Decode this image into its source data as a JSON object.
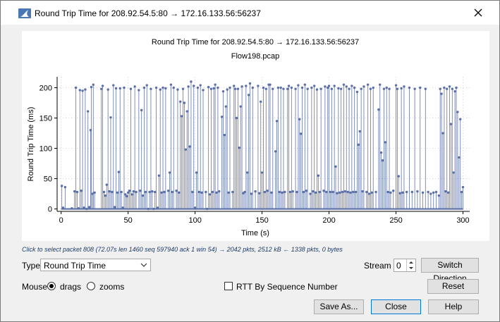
{
  "window": {
    "title": "Round Trip Time for 208.92.54.5:80 → 172.16.133.56:56237"
  },
  "chart_data": {
    "type": "scatter",
    "title": "Round Trip Time for 208.92.54.5:80 → 172.16.133.56:56237",
    "subtitle": "Flow198.pcap",
    "xlabel": "Time (s)",
    "ylabel": "Round Trip Time (ms)",
    "xlim": [
      -3,
      305
    ],
    "ylim": [
      -4,
      218
    ],
    "xticks": [
      0,
      50,
      100,
      150,
      200,
      250,
      300
    ],
    "yticks": [
      0,
      50,
      100,
      150,
      200
    ],
    "grid": true,
    "series_color": "#5b6fa8",
    "series": [
      {
        "name": "RTT",
        "points": [
          [
            0.5,
            38
          ],
          [
            1.5,
            2
          ],
          [
            3,
            36
          ],
          [
            8,
            1
          ],
          [
            10,
            29
          ],
          [
            11,
            200
          ],
          [
            12,
            28
          ],
          [
            13,
            1
          ],
          [
            14,
            196
          ],
          [
            15,
            30
          ],
          [
            16,
            195
          ],
          [
            17,
            2
          ],
          [
            18,
            197
          ],
          [
            19,
            0
          ],
          [
            20,
            161
          ],
          [
            21,
            3
          ],
          [
            22,
            130
          ],
          [
            22.5,
            201
          ],
          [
            23.5,
            25
          ],
          [
            24,
            205
          ],
          [
            25,
            27
          ],
          [
            30,
            198
          ],
          [
            31,
            203
          ],
          [
            32,
            28
          ],
          [
            33,
            22
          ],
          [
            34,
            40
          ],
          [
            35,
            197
          ],
          [
            36,
            29
          ],
          [
            37,
            151
          ],
          [
            38,
            28
          ],
          [
            39,
            204
          ],
          [
            40,
            3
          ],
          [
            41,
            199
          ],
          [
            42,
            27
          ],
          [
            43,
            61
          ],
          [
            44,
            199
          ],
          [
            45,
            28
          ],
          [
            46,
            2
          ],
          [
            47,
            200
          ],
          [
            48,
            24
          ],
          [
            49,
            21
          ],
          [
            50,
            27
          ],
          [
            51,
            30
          ],
          [
            52,
            198
          ],
          [
            53,
            24
          ],
          [
            54,
            29
          ],
          [
            55,
            202
          ],
          [
            56,
            28
          ],
          [
            58,
            196
          ],
          [
            59,
            30
          ],
          [
            60,
            163
          ],
          [
            61,
            22
          ],
          [
            62,
            200
          ],
          [
            63,
            28
          ],
          [
            64,
            204
          ],
          [
            65,
            0
          ],
          [
            66,
            28
          ],
          [
            67,
            198
          ],
          [
            68,
            29
          ],
          [
            69,
            0
          ],
          [
            70,
            28
          ],
          [
            71,
            200
          ],
          [
            72,
            2
          ],
          [
            73,
            55
          ],
          [
            74,
            197
          ],
          [
            75,
            27
          ],
          [
            76,
            200
          ],
          [
            77,
            28
          ],
          [
            78,
            199
          ],
          [
            80,
            30
          ],
          [
            81,
            60
          ],
          [
            82,
            205
          ],
          [
            83,
            28
          ],
          [
            84,
            200
          ],
          [
            86,
            30
          ],
          [
            87,
            197
          ],
          [
            88,
            27
          ],
          [
            89,
            177
          ],
          [
            90,
            153
          ],
          [
            91,
            198
          ],
          [
            92,
            175
          ],
          [
            93,
            98
          ],
          [
            94,
            161
          ],
          [
            95,
            202
          ],
          [
            96,
            103
          ],
          [
            97,
            210
          ],
          [
            98,
            28
          ],
          [
            99,
            203
          ],
          [
            100,
            2
          ],
          [
            101,
            60
          ],
          [
            102,
            200
          ],
          [
            103,
            28
          ],
          [
            104,
            204
          ],
          [
            105,
            27
          ],
          [
            106,
            196
          ],
          [
            108,
            28
          ],
          [
            109,
            0
          ],
          [
            110,
            201
          ],
          [
            111,
            24
          ],
          [
            112,
            198
          ],
          [
            113,
            28
          ],
          [
            114,
            199
          ],
          [
            115,
            205
          ],
          [
            116,
            27
          ],
          [
            117,
            200
          ],
          [
            118,
            29
          ],
          [
            120,
            152
          ],
          [
            121,
            194
          ],
          [
            122,
            122
          ],
          [
            123,
            169
          ],
          [
            124,
            197
          ],
          [
            125,
            27
          ],
          [
            126,
            200
          ],
          [
            128,
            28
          ],
          [
            129,
            203
          ],
          [
            130,
            198
          ],
          [
            131,
            150
          ],
          [
            132,
            198
          ],
          [
            133,
            101
          ],
          [
            134,
            169
          ],
          [
            135,
            202
          ],
          [
            136,
            26
          ],
          [
            137,
            28
          ],
          [
            138,
            203
          ],
          [
            139,
            60
          ],
          [
            140,
            188
          ],
          [
            141,
            207
          ],
          [
            142,
            25
          ],
          [
            143,
            200
          ],
          [
            145,
            29
          ],
          [
            147,
            203
          ],
          [
            148,
            26
          ],
          [
            149,
            177
          ],
          [
            150,
            60
          ],
          [
            151,
            200
          ],
          [
            152,
            28
          ],
          [
            153,
            198
          ],
          [
            154,
            30
          ],
          [
            155,
            205
          ],
          [
            156,
            205
          ],
          [
            157,
            27
          ],
          [
            158,
            198
          ],
          [
            160,
            95
          ],
          [
            161,
            145
          ],
          [
            162,
            200
          ],
          [
            163,
            28
          ],
          [
            164,
            200
          ],
          [
            165,
            27
          ],
          [
            166,
            198
          ],
          [
            167,
            28
          ],
          [
            169,
            198
          ],
          [
            170,
            203
          ],
          [
            171,
            28
          ],
          [
            172,
            200
          ],
          [
            173,
            29
          ],
          [
            175,
            198
          ],
          [
            176,
            28
          ],
          [
            177,
            204
          ],
          [
            178,
            148
          ],
          [
            179,
            124
          ],
          [
            180,
            200
          ],
          [
            181,
            28
          ],
          [
            182,
            205
          ],
          [
            183,
            30
          ],
          [
            184,
            198
          ],
          [
            186,
            25
          ],
          [
            187,
            200
          ],
          [
            188,
            29
          ],
          [
            189,
            203
          ],
          [
            190,
            27
          ],
          [
            191,
            197
          ],
          [
            192,
            55
          ],
          [
            193,
            28
          ],
          [
            194,
            198
          ],
          [
            196,
            30
          ],
          [
            197,
            202
          ],
          [
            198,
            28
          ],
          [
            199,
            200
          ],
          [
            200,
            203
          ],
          [
            201,
            28
          ],
          [
            202,
            198
          ],
          [
            203,
            28
          ],
          [
            204,
            203
          ],
          [
            205,
            70
          ],
          [
            206,
            26
          ],
          [
            207,
            199
          ],
          [
            208,
            27
          ],
          [
            209,
            198
          ],
          [
            210,
            28
          ],
          [
            211,
            205
          ],
          [
            212,
            29
          ],
          [
            213,
            202
          ],
          [
            214,
            28
          ],
          [
            215,
            198
          ],
          [
            216,
            27
          ],
          [
            217,
            203
          ],
          [
            218,
            28
          ],
          [
            219,
            200
          ],
          [
            220,
            28
          ],
          [
            221,
            193
          ],
          [
            222,
            106
          ],
          [
            223,
            128
          ],
          [
            224,
            198
          ],
          [
            225,
            29
          ],
          [
            226,
            202
          ],
          [
            228,
            28
          ],
          [
            229,
            205
          ],
          [
            230,
            25
          ],
          [
            231,
            198
          ],
          [
            232,
            27
          ],
          [
            233,
            200
          ],
          [
            235,
            28
          ],
          [
            237,
            164
          ],
          [
            238,
            205
          ],
          [
            239,
            93
          ],
          [
            240,
            80
          ],
          [
            241,
            198
          ],
          [
            242,
            110
          ],
          [
            243,
            200
          ],
          [
            244,
            28
          ],
          [
            245,
            198
          ],
          [
            246,
            27
          ],
          [
            248,
            30
          ],
          [
            250,
            204
          ],
          [
            251,
            198
          ],
          [
            252,
            54
          ],
          [
            253,
            26
          ],
          [
            254,
            199
          ],
          [
            255,
            27
          ],
          [
            256,
            202
          ],
          [
            258,
            28
          ],
          [
            260,
            200
          ],
          [
            262,
            28
          ],
          [
            264,
            198
          ],
          [
            266,
            29
          ],
          [
            268,
            200
          ],
          [
            270,
            27
          ],
          [
            272,
            198
          ],
          [
            274,
            28
          ],
          [
            276,
            25
          ],
          [
            278,
            27
          ],
          [
            280,
            28
          ],
          [
            282,
            22
          ],
          [
            283,
            198
          ],
          [
            284,
            190
          ],
          [
            285,
            125
          ],
          [
            286,
            200
          ],
          [
            287,
            29
          ],
          [
            288,
            198
          ],
          [
            289,
            27
          ],
          [
            290,
            202
          ],
          [
            291,
            140
          ],
          [
            292,
            198
          ],
          [
            293,
            60
          ],
          [
            294,
            194
          ],
          [
            295,
            200
          ],
          [
            296,
            160
          ],
          [
            297,
            85
          ],
          [
            298,
            148
          ],
          [
            299,
            28
          ],
          [
            300,
            36
          ]
        ]
      }
    ]
  },
  "hint_text": "Click to select packet 808 (72.07s len 1460 seq 597940 ack 1 win 54) → 2042 pkts, 2512 kB ← 1338 pkts, 0 bytes",
  "controls": {
    "type_label": "Type",
    "type_value": "Round Trip Time",
    "stream_label": "Stream",
    "stream_value": "0",
    "switch_direction_label": "Switch Direction",
    "mouse_label": "Mouse",
    "drags_label": "drags",
    "zooms_label": "zooms",
    "rtt_by_seq_label": "RTT By Sequence Number",
    "reset_label": "Reset",
    "save_as_label": "Save As...",
    "close_label": "Close",
    "help_label": "Help"
  }
}
